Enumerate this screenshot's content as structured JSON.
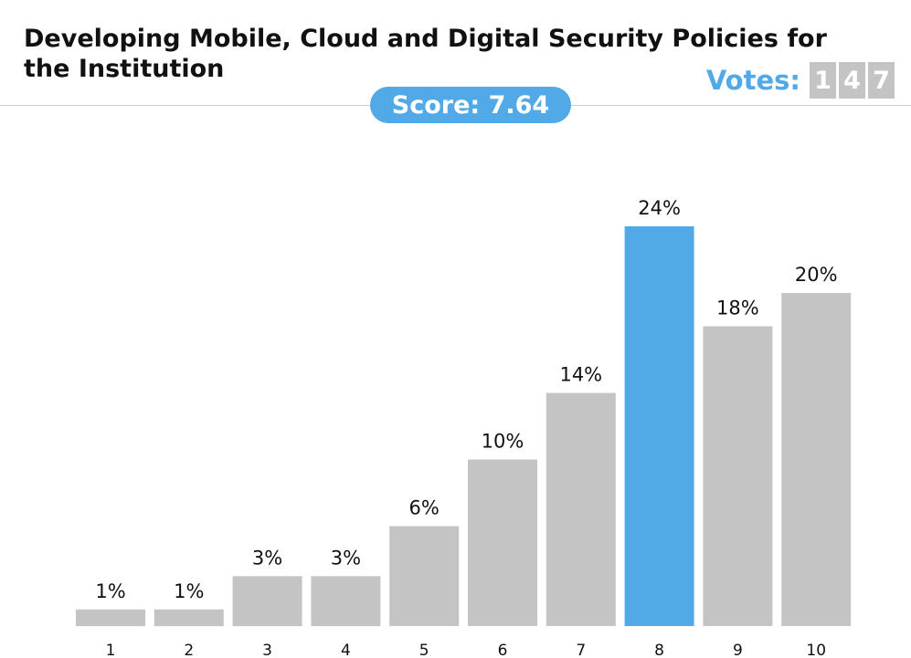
{
  "header": {
    "title": "Developing Mobile, Cloud and Digital Security Policies for the Institution",
    "votes_label": "Votes:",
    "votes_digits": [
      "1",
      "4",
      "7"
    ],
    "score_label": "Score: 7.64"
  },
  "colors": {
    "bar": "#c4c4c4",
    "highlight": "#52a9e8",
    "text": "#111111"
  },
  "chart_data": {
    "type": "bar",
    "categories": [
      "1",
      "2",
      "3",
      "4",
      "5",
      "6",
      "7",
      "8",
      "9",
      "10"
    ],
    "values": [
      1,
      1,
      3,
      3,
      6,
      10,
      14,
      24,
      18,
      20
    ],
    "data_labels": [
      "1%",
      "1%",
      "3%",
      "3%",
      "6%",
      "10%",
      "14%",
      "24%",
      "18%",
      "20%"
    ],
    "unit": "%",
    "highlight_category": "8",
    "grid": false,
    "legend": "none"
  }
}
